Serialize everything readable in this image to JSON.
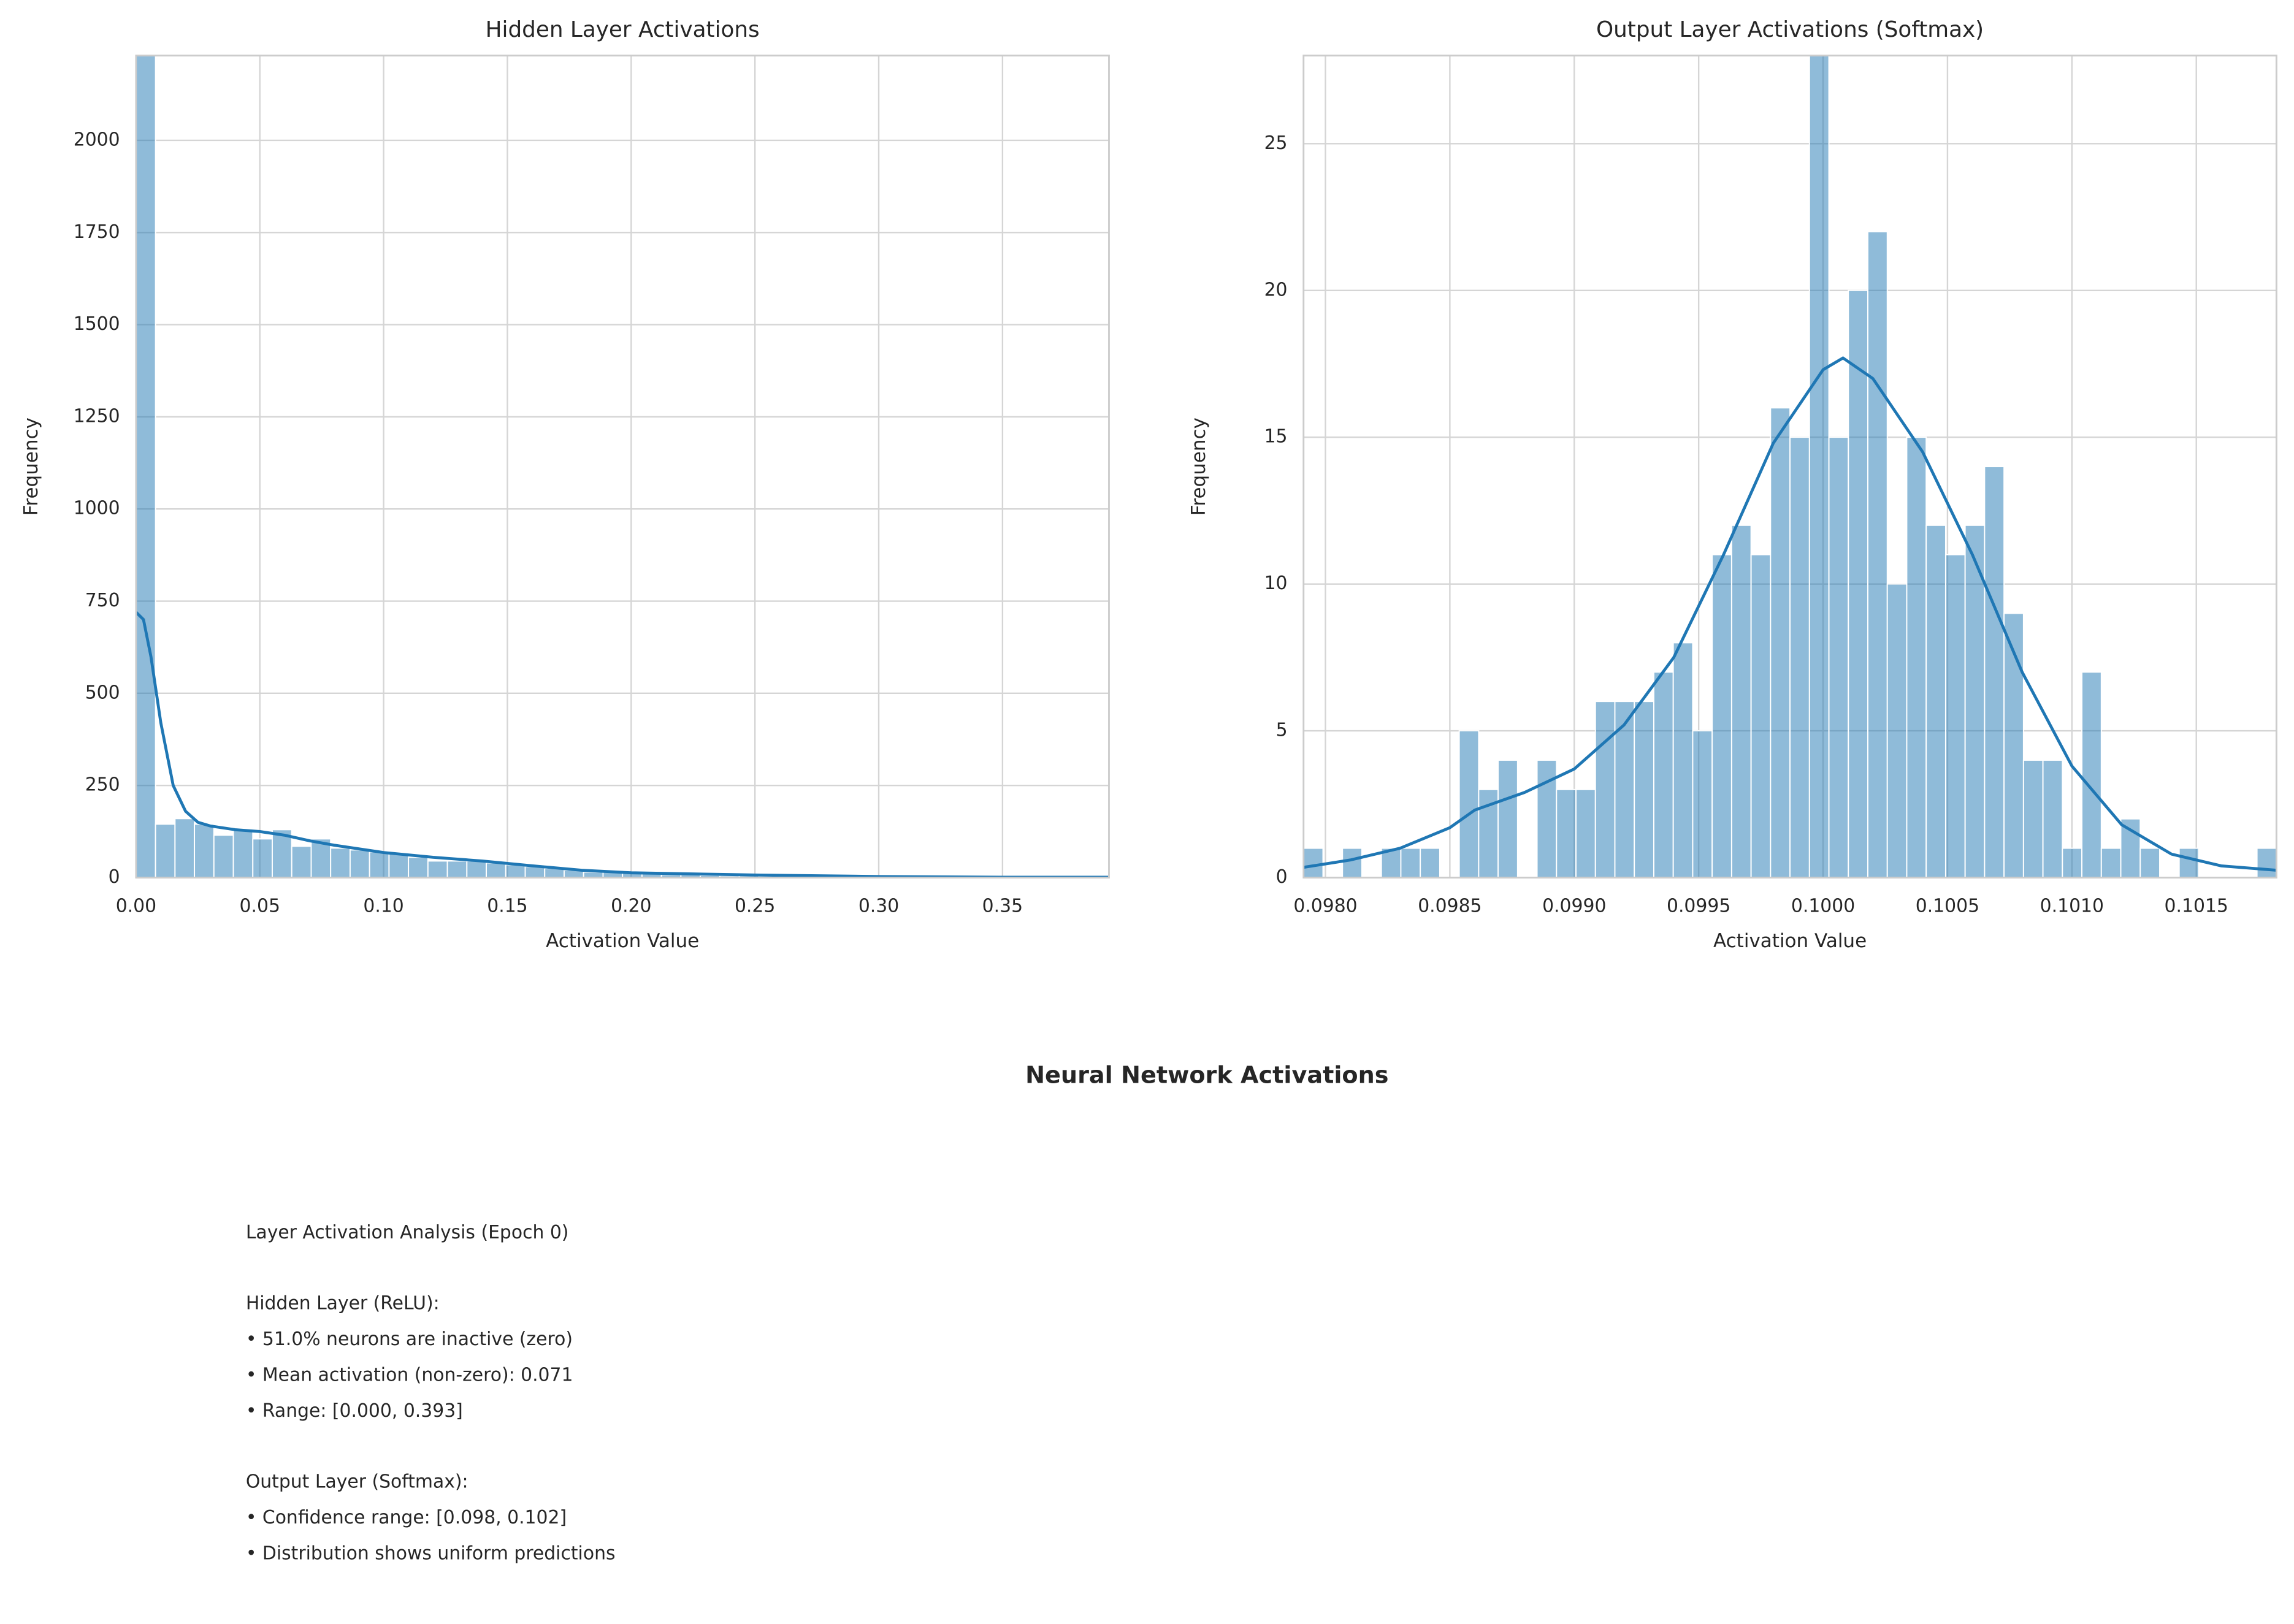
{
  "chart_data": [
    {
      "type": "histogram",
      "title": "Hidden Layer Activations",
      "xlabel": "Activation Value",
      "ylabel": "Frequency",
      "color": "#1f77b4",
      "grid": true,
      "bins": [
        0,
        0.00786,
        0.01572,
        0.02358,
        0.03144,
        0.0393,
        0.04716,
        0.05502,
        0.06288,
        0.07074,
        0.0786,
        0.08646,
        0.09432,
        0.10218,
        0.11004,
        0.1179,
        0.12576,
        0.13362,
        0.14148,
        0.14934,
        0.1572,
        0.16506,
        0.17292,
        0.18078,
        0.18864,
        0.1965,
        0.20436,
        0.21222,
        0.22008,
        0.22794,
        0.2358,
        0.24366,
        0.25152,
        0.25938,
        0.26724,
        0.2751,
        0.28296,
        0.29082,
        0.29868,
        0.30654,
        0.3144,
        0.32226,
        0.33012,
        0.33798,
        0.34584,
        0.3537,
        0.36156,
        0.36942,
        0.37728,
        0.38514,
        0.393
      ],
      "values": [
        2300,
        145,
        160,
        145,
        115,
        130,
        105,
        130,
        85,
        105,
        80,
        75,
        70,
        65,
        55,
        45,
        45,
        45,
        40,
        35,
        30,
        25,
        20,
        15,
        15,
        12,
        10,
        8,
        8,
        6,
        5,
        5,
        4,
        3,
        3,
        2,
        2,
        2,
        1,
        1,
        1,
        1,
        1,
        1,
        0,
        1,
        0,
        0,
        0,
        1
      ],
      "kde": {
        "x": [
          0,
          0.003,
          0.006,
          0.01,
          0.015,
          0.02,
          0.025,
          0.03,
          0.04,
          0.05,
          0.06,
          0.07,
          0.08,
          0.09,
          0.1,
          0.12,
          0.14,
          0.16,
          0.18,
          0.2,
          0.25,
          0.3,
          0.35,
          0.393
        ],
        "values": [
          720,
          700,
          600,
          420,
          250,
          180,
          150,
          140,
          130,
          125,
          115,
          100,
          88,
          78,
          68,
          55,
          45,
          32,
          20,
          13,
          7,
          3,
          1,
          1
        ]
      },
      "xlim": [
        0,
        0.393
      ],
      "ylim": [
        0,
        2230
      ],
      "xticks": [
        {
          "value": 0,
          "label": "0.00"
        },
        {
          "value": 0.05,
          "label": "0.05"
        },
        {
          "value": 0.1,
          "label": "0.10"
        },
        {
          "value": 0.15,
          "label": "0.15"
        },
        {
          "value": 0.2,
          "label": "0.20"
        },
        {
          "value": 0.25,
          "label": "0.25"
        },
        {
          "value": 0.3,
          "label": "0.30"
        },
        {
          "value": 0.35,
          "label": "0.35"
        }
      ],
      "yticks": [
        0,
        250,
        500,
        750,
        1000,
        1250,
        1500,
        1750,
        2000
      ]
    },
    {
      "type": "histogram",
      "title": "Output Layer Activations (Softmax)",
      "xlabel": "Activation Value",
      "ylabel": "Frequency",
      "color": "#1f77b4",
      "grid": true,
      "bins": [
        0.097912,
        0.0979902,
        0.0980684,
        0.0981466,
        0.0982248,
        0.098303,
        0.0983812,
        0.0984594,
        0.0985376,
        0.0986158,
        0.098694,
        0.0987722,
        0.0988504,
        0.0989286,
        0.0990068,
        0.099085,
        0.0991632,
        0.0992414,
        0.0993196,
        0.0993978,
        0.099476,
        0.0995542,
        0.0996324,
        0.0997106,
        0.0997888,
        0.099867,
        0.0999452,
        0.1000234,
        0.1001016,
        0.1001798,
        0.100258,
        0.1003362,
        0.1004144,
        0.1004926,
        0.1005708,
        0.100649,
        0.1007272,
        0.1008054,
        0.1008836,
        0.1009618,
        0.10104,
        0.1011182,
        0.1011964,
        0.1012746,
        0.1013528,
        0.101431,
        0.1015092,
        0.1015874,
        0.1016656,
        0.1017438,
        0.101822
      ],
      "values": [
        1,
        0,
        1,
        0,
        1,
        1,
        1,
        0,
        5,
        3,
        4,
        0,
        4,
        3,
        3,
        6,
        6,
        6,
        7,
        8,
        5,
        11,
        12,
        11,
        16,
        15,
        28,
        15,
        20,
        22,
        10,
        15,
        12,
        11,
        12,
        14,
        9,
        4,
        4,
        1,
        7,
        1,
        2,
        1,
        0,
        1,
        0,
        0,
        0,
        1
      ],
      "kde": {
        "x": [
          0.097912,
          0.0981,
          0.0983,
          0.0985,
          0.0986,
          0.0988,
          0.099,
          0.0992,
          0.0994,
          0.0996,
          0.0998,
          0.1,
          0.10008,
          0.1002,
          0.1004,
          0.1006,
          0.1008,
          0.101,
          0.1012,
          0.1014,
          0.1016,
          0.101822
        ],
        "values": [
          0.35,
          0.6,
          1.0,
          1.7,
          2.3,
          2.9,
          3.7,
          5.2,
          7.5,
          11,
          14.8,
          17.3,
          17.7,
          17,
          14.5,
          11,
          7,
          3.8,
          1.8,
          0.8,
          0.4,
          0.25
        ]
      },
      "xlim": [
        0.097912,
        0.101822
      ],
      "ylim": [
        0,
        28
      ],
      "xticks": [
        {
          "value": 0.098,
          "label": "0.0980"
        },
        {
          "value": 0.0985,
          "label": "0.0985"
        },
        {
          "value": 0.099,
          "label": "0.0990"
        },
        {
          "value": 0.0995,
          "label": "0.0995"
        },
        {
          "value": 0.1,
          "label": "0.1000"
        },
        {
          "value": 0.1005,
          "label": "0.1005"
        },
        {
          "value": 0.101,
          "label": "0.1010"
        },
        {
          "value": 0.1015,
          "label": "0.1015"
        }
      ],
      "yticks": [
        0,
        5,
        10,
        15,
        20,
        25
      ]
    }
  ],
  "suptitle": "Neural Network Activations",
  "analysis": {
    "title": "Layer Activation Analysis (Epoch 0)",
    "sections": [
      {
        "heading": "Hidden Layer (ReLU):",
        "items": [
          "• 51.0% neurons are inactive (zero)",
          "• Mean activation (non-zero): 0.071",
          "• Range: [0.000, 0.393]"
        ]
      },
      {
        "heading": "Output Layer (Softmax):",
        "items": [
          "• Confidence range: [0.098, 0.102]",
          "• Distribution shows uniform predictions"
        ]
      }
    ]
  }
}
